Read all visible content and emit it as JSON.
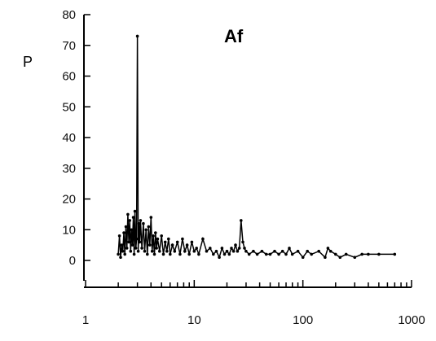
{
  "chart_data": {
    "type": "line",
    "title": "Af",
    "ylabel": "P",
    "xlabel": "",
    "xscale": "log",
    "xlim": [
      1,
      1000
    ],
    "ylim": [
      0,
      80
    ],
    "xticks": [
      "1",
      "10",
      "100",
      "1000"
    ],
    "yticks": [
      "0",
      "10",
      "20",
      "30",
      "40",
      "50",
      "60",
      "70",
      "80"
    ],
    "grid": false,
    "series": [
      {
        "x": [
          2.0,
          2.05,
          2.1,
          2.15,
          2.2,
          2.25,
          2.3,
          2.35,
          2.4,
          2.45,
          2.5,
          2.55,
          2.6,
          2.65,
          2.7,
          2.75,
          2.8,
          2.85,
          2.9,
          2.95,
          3.0,
          3.05,
          3.1,
          3.15,
          3.2,
          3.3,
          3.4,
          3.5,
          3.6,
          3.7,
          3.8,
          3.9,
          4.0,
          4.1,
          4.2,
          4.3,
          4.4,
          4.5,
          4.6,
          4.8,
          5.0,
          5.2,
          5.4,
          5.6,
          5.8,
          6.0,
          6.3,
          6.6,
          7.0,
          7.4,
          7.8,
          8.2,
          8.6,
          9.0,
          9.5,
          10.0,
          10.5,
          11.0,
          12.0,
          13.0,
          14.0,
          15.0,
          16.0,
          17.0,
          18.0,
          19.0,
          20.0,
          21.0,
          22.0,
          23.0,
          24.0,
          25.0,
          26.0,
          27.0,
          28.0,
          29.0,
          30.0,
          32.0,
          35.0,
          38.0,
          42.0,
          46.0,
          50.0,
          55.0,
          60.0,
          65.0,
          70.0,
          75.0,
          80.0,
          90.0,
          100.0,
          110.0,
          120.0,
          140.0,
          160.0,
          170.0,
          180.0,
          200.0,
          220.0,
          250.0,
          300.0,
          350.0,
          400.0,
          500.0,
          700.0
        ],
        "y": [
          2,
          8,
          1,
          5,
          3,
          9,
          2,
          11,
          4,
          15,
          6,
          13,
          3,
          10,
          5,
          14,
          2,
          16,
          4,
          7,
          73,
          3,
          12,
          6,
          13,
          4,
          12,
          3,
          10,
          2,
          11,
          5,
          14,
          3,
          8,
          2,
          9,
          4,
          7,
          3,
          8,
          2,
          6,
          3,
          7,
          2,
          5,
          3,
          6,
          2,
          7,
          3,
          5,
          2,
          6,
          3,
          4,
          2,
          7,
          3,
          4,
          2,
          3,
          1,
          4,
          2,
          3,
          2,
          4,
          3,
          5,
          3,
          4,
          13,
          6,
          4,
          3,
          2,
          3,
          2,
          3,
          2,
          2,
          3,
          2,
          3,
          2,
          4,
          2,
          3,
          1,
          3,
          2,
          3,
          1,
          4,
          3,
          2,
          1,
          2,
          1,
          2,
          2,
          2,
          2
        ]
      }
    ]
  }
}
